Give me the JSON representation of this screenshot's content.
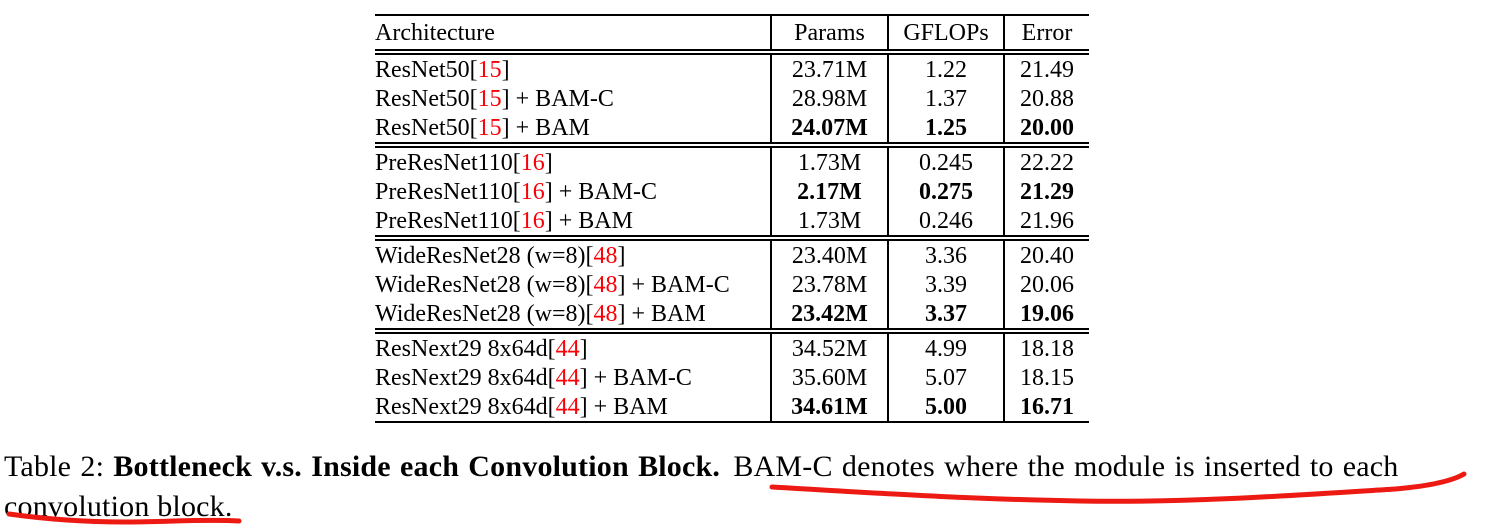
{
  "table": {
    "headers": [
      "Architecture",
      "Params",
      "GFLOPs",
      "Error"
    ],
    "groups": [
      {
        "rows": [
          {
            "arch_pre": "ResNet50[",
            "cite": "15",
            "arch_post": "]",
            "params": "23.71M",
            "gflops": "1.22",
            "error": "21.49",
            "bold": false
          },
          {
            "arch_pre": "ResNet50[",
            "cite": "15",
            "arch_post": "] + BAM-C",
            "params": "28.98M",
            "gflops": "1.37",
            "error": "20.88",
            "bold": false
          },
          {
            "arch_pre": "ResNet50[",
            "cite": "15",
            "arch_post": "] + BAM",
            "params": "24.07M",
            "gflops": "1.25",
            "error": "20.00",
            "bold": true
          }
        ]
      },
      {
        "rows": [
          {
            "arch_pre": "PreResNet110[",
            "cite": "16",
            "arch_post": "]",
            "params": "1.73M",
            "gflops": "0.245",
            "error": "22.22",
            "bold": false
          },
          {
            "arch_pre": "PreResNet110[",
            "cite": "16",
            "arch_post": "] + BAM-C",
            "params": "2.17M",
            "gflops": "0.275",
            "error": "21.29",
            "bold": true
          },
          {
            "arch_pre": "PreResNet110[",
            "cite": "16",
            "arch_post": "] + BAM",
            "params": "1.73M",
            "gflops": "0.246",
            "error": "21.96",
            "bold": false
          }
        ]
      },
      {
        "rows": [
          {
            "arch_pre": "WideResNet28 (w=8)[",
            "cite": "48",
            "arch_post": "]",
            "params": "23.40M",
            "gflops": "3.36",
            "error": "20.40",
            "bold": false
          },
          {
            "arch_pre": "WideResNet28 (w=8)[",
            "cite": "48",
            "arch_post": "] + BAM-C",
            "params": "23.78M",
            "gflops": "3.39",
            "error": "20.06",
            "bold": false
          },
          {
            "arch_pre": "WideResNet28 (w=8)[",
            "cite": "48",
            "arch_post": "] + BAM",
            "params": "23.42M",
            "gflops": "3.37",
            "error": "19.06",
            "bold": true
          }
        ]
      },
      {
        "rows": [
          {
            "arch_pre": "ResNext29 8x64d[",
            "cite": "44",
            "arch_post": "]",
            "params": "34.52M",
            "gflops": "4.99",
            "error": "18.18",
            "bold": false
          },
          {
            "arch_pre": "ResNext29 8x64d[",
            "cite": "44",
            "arch_post": "] + BAM-C",
            "params": "35.60M",
            "gflops": "5.07",
            "error": "18.15",
            "bold": false
          },
          {
            "arch_pre": "ResNext29 8x64d[",
            "cite": "44",
            "arch_post": "] + BAM",
            "params": "34.61M",
            "gflops": "5.00",
            "error": "16.71",
            "bold": true
          }
        ]
      }
    ]
  },
  "caption": {
    "label": "Table 2: ",
    "bold_text": "Bottleneck v.s. Inside each Convolution Block.",
    "line1_rest": " BAM-C denotes where the module is inserted to each",
    "line2": "convolution block."
  },
  "colors": {
    "citation_red": "#fb0007",
    "pen_red": "#ec1a12",
    "text": "#000000",
    "background": "#ffffff"
  },
  "annotations": {
    "underline1_target": "BAM-C denotes where the module is inserted to each",
    "underline2_target": "convolution block"
  }
}
